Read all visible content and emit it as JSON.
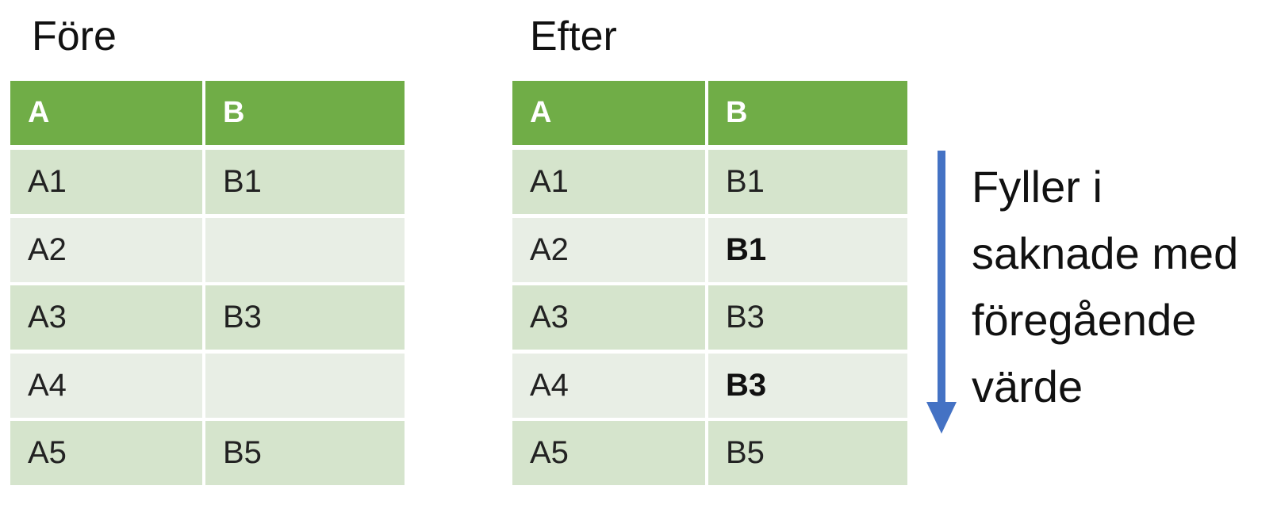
{
  "before": {
    "title": "Före",
    "header": [
      "A",
      "B"
    ],
    "rows": [
      [
        "A1",
        "B1"
      ],
      [
        "A2",
        null
      ],
      [
        "A3",
        "B3"
      ],
      [
        "A4",
        null
      ],
      [
        "A5",
        "B5"
      ]
    ]
  },
  "after": {
    "title": "Efter",
    "header": [
      "A",
      "B"
    ],
    "rows": [
      [
        "A1",
        "B1"
      ],
      [
        "A2",
        "B1"
      ],
      [
        "A3",
        "B3"
      ],
      [
        "A4",
        "B3"
      ],
      [
        "A5",
        "B5"
      ]
    ]
  },
  "note": {
    "lines": [
      "Fyller i",
      "saknade med",
      "föregående",
      "värde"
    ]
  }
}
